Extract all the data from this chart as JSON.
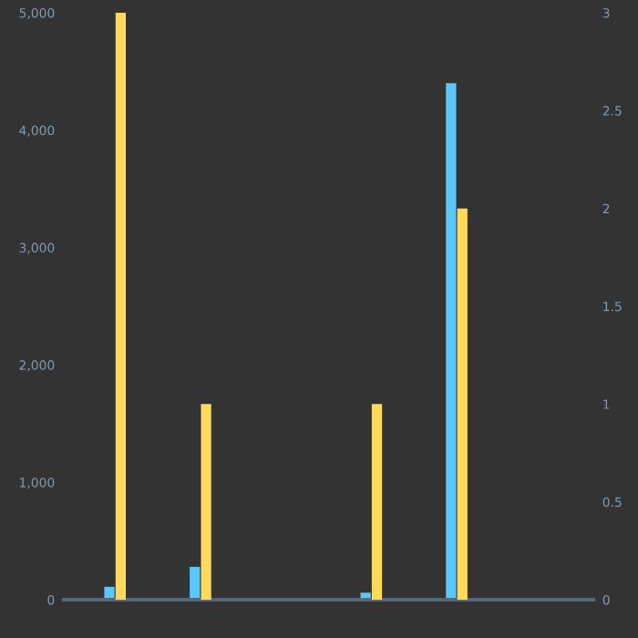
{
  "chart_data": {
    "type": "bar",
    "categories": [
      null,
      null,
      null,
      null,
      null,
      null
    ],
    "series": [
      {
        "color": "#5ac8fa",
        "values": [
          110,
          280,
          null,
          60,
          4400,
          null
        ]
      },
      {
        "color": "#ffd95a",
        "axis": "y2",
        "values": [
          3,
          1,
          null,
          1,
          2,
          null
        ]
      }
    ],
    "ylim": [
      0,
      5000
    ],
    "yticks": [
      {
        "value": 0,
        "label": "0"
      },
      {
        "value": 1000,
        "label": "1,000"
      },
      {
        "value": 2000,
        "label": "2,000"
      },
      {
        "value": 3000,
        "label": "3,000"
      },
      {
        "value": 4000,
        "label": "4,000"
      },
      {
        "value": 5000,
        "label": "5,000"
      }
    ],
    "y2lim": [
      0,
      3
    ],
    "y2ticks": [
      0,
      0.5,
      1,
      1.5,
      2,
      2.5,
      3
    ],
    "grid": false
  }
}
